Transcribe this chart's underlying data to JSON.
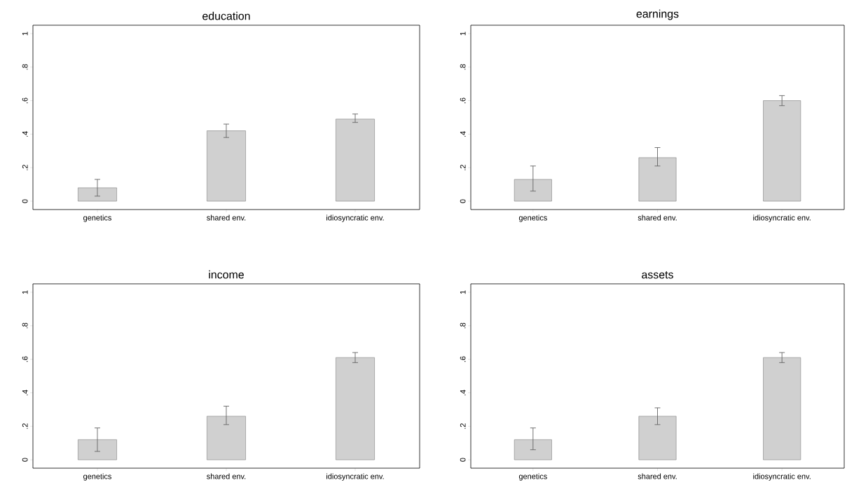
{
  "chart_data": [
    {
      "type": "bar",
      "title": "education",
      "categories": [
        "genetics",
        "shared env.",
        "idiosyncratic env."
      ],
      "values": [
        0.08,
        0.42,
        0.49
      ],
      "errors": [
        [
          0.03,
          0.13
        ],
        [
          0.38,
          0.46
        ],
        [
          0.47,
          0.52
        ]
      ],
      "color": "#d0d0d0",
      "ylim": [
        -0.05,
        1.05
      ],
      "yticks": [
        0,
        {
          "value": 0.2,
          "label": ".2"
        },
        {
          "value": 0.4,
          "label": ".4"
        },
        {
          "value": 0.6,
          "label": ".6"
        },
        {
          "value": 0.8,
          "label": ".8"
        },
        1
      ]
    },
    {
      "type": "bar",
      "title": "earnings",
      "categories": [
        "genetics",
        "shared env.",
        "idiosyncratic env."
      ],
      "values": [
        0.13,
        0.26,
        0.6
      ],
      "errors": [
        [
          0.06,
          0.21
        ],
        [
          0.21,
          0.32
        ],
        [
          0.57,
          0.63
        ]
      ],
      "color": "#d0d0d0",
      "ylim": [
        -0.05,
        1.05
      ],
      "yticks": [
        0,
        {
          "value": 0.2,
          "label": ".2"
        },
        {
          "value": 0.4,
          "label": ".4"
        },
        {
          "value": 0.6,
          "label": ".6"
        },
        {
          "value": 0.8,
          "label": ".8"
        },
        1
      ]
    },
    {
      "type": "bar",
      "title": "income",
      "categories": [
        "genetics",
        "shared env.",
        "idiosyncratic env."
      ],
      "values": [
        0.12,
        0.26,
        0.61
      ],
      "errors": [
        [
          0.05,
          0.19
        ],
        [
          0.21,
          0.32
        ],
        [
          0.58,
          0.64
        ]
      ],
      "color": "#d0d0d0",
      "ylim": [
        -0.05,
        1.05
      ],
      "yticks": [
        0,
        {
          "value": 0.2,
          "label": ".2"
        },
        {
          "value": 0.4,
          "label": ".4"
        },
        {
          "value": 0.6,
          "label": ".6"
        },
        {
          "value": 0.8,
          "label": ".8"
        },
        1
      ]
    },
    {
      "type": "bar",
      "title": "assets",
      "categories": [
        "genetics",
        "shared env.",
        "idiosyncratic env."
      ],
      "values": [
        0.12,
        0.26,
        0.61
      ],
      "errors": [
        [
          0.06,
          0.19
        ],
        [
          0.21,
          0.31
        ],
        [
          0.58,
          0.64
        ]
      ],
      "color": "#d0d0d0",
      "ylim": [
        -0.05,
        1.05
      ],
      "yticks": [
        0,
        {
          "value": 0.2,
          "label": ".2"
        },
        {
          "value": 0.4,
          "label": ".4"
        },
        {
          "value": 0.6,
          "label": ".6"
        },
        {
          "value": 0.8,
          "label": ".8"
        },
        1
      ]
    }
  ]
}
